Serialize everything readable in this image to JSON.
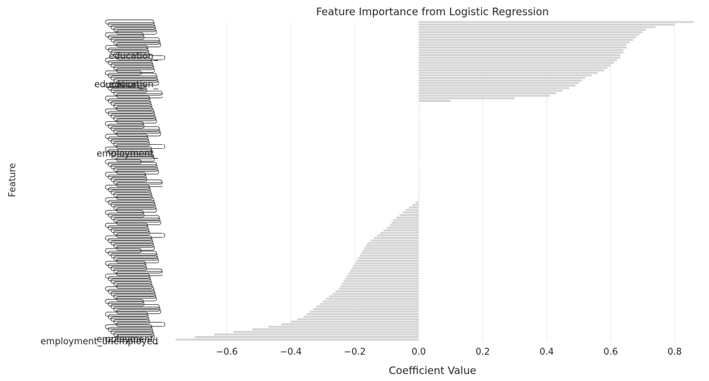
{
  "chart_data": {
    "type": "bar",
    "orientation": "horizontal",
    "title": "Feature Importance from Logistic Regression",
    "xlabel": "Coefficient Value",
    "ylabel": "Feature",
    "xlim": [
      -0.8,
      0.89
    ],
    "xticks": [
      -0.6,
      -0.4,
      -0.2,
      0.0,
      0.2,
      0.4,
      0.6,
      0.8
    ],
    "xtick_labels": [
      "−0.6",
      "−0.4",
      "−0.2",
      "0.0",
      "0.2",
      "0.4",
      "0.6",
      "0.8"
    ],
    "grid": true,
    "legend": "none",
    "visible_feature_labels": [
      "education_",
      "education_",
      "education_",
      "employment_",
      "employment_",
      "employment_unemployed"
    ],
    "values": [
      0.86,
      0.8,
      0.74,
      0.71,
      0.7,
      0.69,
      0.68,
      0.67,
      0.66,
      0.65,
      0.65,
      0.64,
      0.64,
      0.63,
      0.63,
      0.62,
      0.61,
      0.6,
      0.59,
      0.58,
      0.56,
      0.54,
      0.52,
      0.51,
      0.5,
      0.49,
      0.47,
      0.45,
      0.43,
      0.41,
      0.3,
      0.1,
      0.0,
      0.0,
      0.0,
      0.0,
      0.0,
      0.0,
      0.0,
      0.0,
      0.0,
      0.0,
      0.0,
      0.0,
      0.0,
      0.0,
      0.0,
      0.0,
      0.0,
      0.0,
      0.0,
      0.0,
      0.0,
      0.0,
      0.0,
      0.0,
      0.0,
      0.0,
      0.0,
      0.0,
      0.0,
      0.0,
      0.0,
      0.0,
      0.0,
      0.0,
      0.0,
      0.0,
      0.0,
      0.0,
      -0.002,
      -0.01,
      -0.02,
      -0.03,
      -0.04,
      -0.05,
      -0.06,
      -0.07,
      -0.08,
      -0.085,
      -0.09,
      -0.1,
      -0.11,
      -0.12,
      -0.13,
      -0.14,
      -0.15,
      -0.16,
      -0.165,
      -0.17,
      -0.175,
      -0.18,
      -0.185,
      -0.19,
      -0.195,
      -0.2,
      -0.205,
      -0.21,
      -0.215,
      -0.22,
      -0.225,
      -0.23,
      -0.235,
      -0.24,
      -0.245,
      -0.25,
      -0.26,
      -0.27,
      -0.28,
      -0.29,
      -0.3,
      -0.31,
      -0.32,
      -0.33,
      -0.34,
      -0.35,
      -0.36,
      -0.38,
      -0.4,
      -0.43,
      -0.47,
      -0.52,
      -0.58,
      -0.64,
      -0.7,
      -0.76
    ],
    "bar_color": "#d3d3d3",
    "background_color": "#ffffff",
    "grid_color": "#ebebeb",
    "text_color": "#262626"
  }
}
